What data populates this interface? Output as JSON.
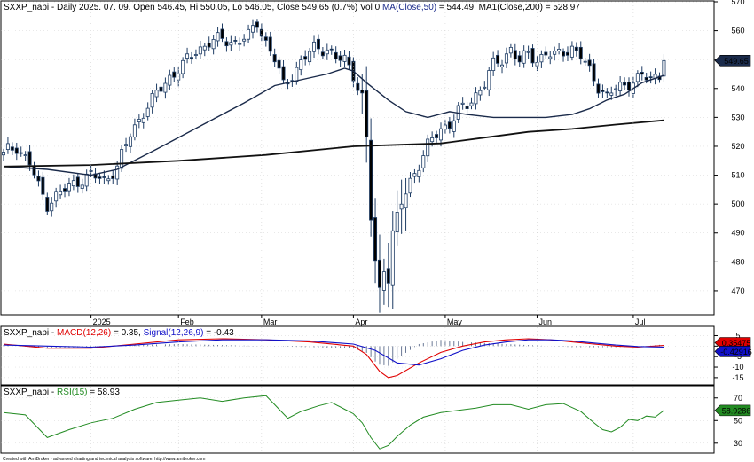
{
  "header": {
    "symbol": "SXXP_napi",
    "info": " - Daily 2025. 07. 09. Open 546.45, Hi 550.05, Lo 546.05, Close 549.65 (0.7%) Vol 0 ",
    "ma50_label": "MA(Close,50)",
    "ma50_value": " = 544.49, ",
    "ma200_label": "MA1(Close,200)",
    "ma200_value": " = 528.97",
    "close_tag": "549.65"
  },
  "macd_panel": {
    "symbol": "SXXP_napi",
    "sep": " - ",
    "macd_label": "MACD(12,26)",
    "macd_value": " = 0.35, ",
    "signal_label": "Signal(12,26,9)",
    "signal_value": " = -0.43",
    "macd_tag": "0.35475",
    "signal_tag": "-0.42916"
  },
  "rsi_panel": {
    "symbol": "SXXP_napi",
    "sep": " - ",
    "rsi_label": "RSI(15)",
    "rsi_value": " = 58.93",
    "rsi_tag": "58.9286"
  },
  "footer": "Created with AmiBroker - advanced charting and technical analysis software. http://www.amibroker.com",
  "colors": {
    "up_fill": "#ffffff",
    "down_fill": "#000000",
    "candle_edge": "#1e3c64",
    "ma50": "#1a2a4a",
    "ma200": "#111111",
    "macd": "#e00000",
    "signal": "#1010c8",
    "hist": "#5a6a8a",
    "rsi": "#228b22",
    "grid": "#c8c8c8"
  },
  "chart_data": [
    {
      "type": "candlestick",
      "title": "SXXP_napi - Daily 2025. 07. 09.",
      "x_labels": [
        "2025",
        "Feb",
        "Mar",
        "Apr",
        "May",
        "Jun",
        "Jul"
      ],
      "ylim": [
        462,
        570
      ],
      "y_ticks": [
        470,
        480,
        490,
        500,
        510,
        520,
        530,
        540,
        550,
        560,
        570
      ],
      "close_path": [
        [
          0,
          518
        ],
        [
          3,
          520
        ],
        [
          6,
          514
        ],
        [
          8,
          506
        ],
        [
          10,
          500
        ],
        [
          12,
          503
        ],
        [
          14,
          505
        ],
        [
          17,
          508
        ],
        [
          20,
          510
        ],
        [
          23,
          508
        ],
        [
          26,
          513
        ],
        [
          29,
          524
        ],
        [
          32,
          532
        ],
        [
          35,
          538
        ],
        [
          38,
          544
        ],
        [
          41,
          548
        ],
        [
          44,
          553
        ],
        [
          47,
          556
        ],
        [
          50,
          557
        ],
        [
          53,
          556
        ],
        [
          56,
          558
        ],
        [
          58,
          563
        ],
        [
          60,
          556
        ],
        [
          62,
          550
        ],
        [
          64,
          541
        ],
        [
          66,
          545
        ],
        [
          68,
          549
        ],
        [
          71,
          554
        ],
        [
          74,
          554
        ],
        [
          76,
          550
        ],
        [
          78,
          550
        ],
        [
          80,
          545
        ],
        [
          82,
          537
        ],
        [
          83,
          522
        ],
        [
          84,
          495
        ],
        [
          85,
          480
        ],
        [
          86,
          470
        ],
        [
          87,
          478
        ],
        [
          88,
          475
        ],
        [
          89,
          490
        ],
        [
          91,
          500
        ],
        [
          93,
          508
        ],
        [
          95,
          514
        ],
        [
          97,
          520
        ],
        [
          100,
          526
        ],
        [
          102,
          528
        ],
        [
          104,
          532
        ],
        [
          106,
          534
        ],
        [
          108,
          538
        ],
        [
          110,
          542
        ],
        [
          112,
          548
        ],
        [
          114,
          550
        ],
        [
          116,
          554
        ],
        [
          118,
          549
        ],
        [
          120,
          552
        ],
        [
          122,
          550
        ],
        [
          124,
          552
        ],
        [
          126,
          551
        ],
        [
          128,
          553
        ],
        [
          130,
          554
        ],
        [
          132,
          551
        ],
        [
          134,
          546
        ],
        [
          136,
          541
        ],
        [
          138,
          537
        ],
        [
          140,
          540
        ],
        [
          142,
          541
        ],
        [
          144,
          543
        ],
        [
          146,
          544
        ],
        [
          148,
          543
        ],
        [
          150,
          545
        ],
        [
          151,
          549.65
        ]
      ],
      "series": [
        {
          "name": "MA(Close,50)",
          "points": [
            [
              0,
              513
            ],
            [
              10,
              512
            ],
            [
              20,
              510
            ],
            [
              26,
              512
            ],
            [
              35,
              519
            ],
            [
              45,
              527
            ],
            [
              55,
              535
            ],
            [
              62,
              541
            ],
            [
              68,
              543
            ],
            [
              74,
              545
            ],
            [
              78,
              547
            ],
            [
              80,
              546
            ],
            [
              83,
              542
            ],
            [
              88,
              536
            ],
            [
              92,
              532
            ],
            [
              97,
              530
            ],
            [
              102,
              532
            ],
            [
              106,
              531
            ],
            [
              112,
              530
            ],
            [
              118,
              530
            ],
            [
              124,
              530
            ],
            [
              130,
              531
            ],
            [
              134,
              533
            ],
            [
              138,
              536
            ],
            [
              142,
              538
            ],
            [
              146,
              542
            ],
            [
              151,
              544.49
            ]
          ]
        },
        {
          "name": "MA1(Close,200)",
          "points": [
            [
              0,
              513
            ],
            [
              20,
              513.5
            ],
            [
              40,
              515
            ],
            [
              60,
              517
            ],
            [
              80,
              520
            ],
            [
              90,
              520.5
            ],
            [
              100,
              521
            ],
            [
              110,
              523
            ],
            [
              120,
              525
            ],
            [
              130,
              526
            ],
            [
              140,
              527.5
            ],
            [
              151,
              528.97
            ]
          ]
        }
      ]
    },
    {
      "type": "line",
      "title": "MACD(12,26), Signal(12,26,9)",
      "ylim": [
        -18,
        9
      ],
      "y_ticks": [
        -15,
        -10,
        -5,
        0,
        5
      ],
      "series": [
        {
          "name": "MACD(12,26)",
          "points": [
            [
              0,
              1
            ],
            [
              10,
              -1
            ],
            [
              20,
              -1
            ],
            [
              30,
              1
            ],
            [
              40,
              3
            ],
            [
              50,
              3.5
            ],
            [
              60,
              3
            ],
            [
              70,
              2
            ],
            [
              80,
              0
            ],
            [
              83,
              -4
            ],
            [
              86,
              -12
            ],
            [
              88,
              -15
            ],
            [
              90,
              -14
            ],
            [
              95,
              -8
            ],
            [
              100,
              -3
            ],
            [
              105,
              0
            ],
            [
              110,
              2
            ],
            [
              115,
              3
            ],
            [
              120,
              3.5
            ],
            [
              125,
              3
            ],
            [
              130,
              2
            ],
            [
              135,
              1
            ],
            [
              140,
              0
            ],
            [
              145,
              -0.5
            ],
            [
              151,
              0.35
            ]
          ]
        },
        {
          "name": "Signal(12,26,9)",
          "points": [
            [
              0,
              0.5
            ],
            [
              10,
              0
            ],
            [
              20,
              -0.5
            ],
            [
              30,
              0.5
            ],
            [
              40,
              2
            ],
            [
              50,
              3
            ],
            [
              60,
              3
            ],
            [
              70,
              2.5
            ],
            [
              80,
              1
            ],
            [
              85,
              -2
            ],
            [
              90,
              -8
            ],
            [
              95,
              -9
            ],
            [
              100,
              -6
            ],
            [
              105,
              -2
            ],
            [
              110,
              0.5
            ],
            [
              115,
              2
            ],
            [
              120,
              3
            ],
            [
              125,
              3
            ],
            [
              130,
              2.5
            ],
            [
              135,
              1.5
            ],
            [
              140,
              0.5
            ],
            [
              145,
              -0.2
            ],
            [
              151,
              -0.43
            ]
          ]
        }
      ]
    },
    {
      "type": "line",
      "title": "RSI(15)",
      "ylim": [
        22,
        80
      ],
      "y_ticks": [
        30,
        50,
        70
      ],
      "series": [
        {
          "name": "RSI(15)",
          "points": [
            [
              0,
              57
            ],
            [
              5,
              55
            ],
            [
              10,
              35
            ],
            [
              15,
              42
            ],
            [
              20,
              48
            ],
            [
              25,
              52
            ],
            [
              30,
              60
            ],
            [
              35,
              66
            ],
            [
              40,
              68
            ],
            [
              45,
              70
            ],
            [
              50,
              67
            ],
            [
              55,
              70
            ],
            [
              60,
              72
            ],
            [
              62,
              64
            ],
            [
              65,
              52
            ],
            [
              68,
              58
            ],
            [
              72,
              63
            ],
            [
              75,
              66
            ],
            [
              78,
              60
            ],
            [
              80,
              56
            ],
            [
              82,
              48
            ],
            [
              84,
              35
            ],
            [
              86,
              25
            ],
            [
              88,
              28
            ],
            [
              90,
              36
            ],
            [
              93,
              46
            ],
            [
              96,
              53
            ],
            [
              100,
              57
            ],
            [
              104,
              59
            ],
            [
              108,
              61
            ],
            [
              112,
              64
            ],
            [
              116,
              64
            ],
            [
              120,
              60
            ],
            [
              124,
              64
            ],
            [
              128,
              65
            ],
            [
              132,
              58
            ],
            [
              135,
              48
            ],
            [
              137,
              42
            ],
            [
              139,
              40
            ],
            [
              141,
              44
            ],
            [
              143,
              51
            ],
            [
              145,
              50
            ],
            [
              147,
              54
            ],
            [
              149,
              53
            ],
            [
              151,
              58.93
            ]
          ]
        }
      ]
    }
  ]
}
